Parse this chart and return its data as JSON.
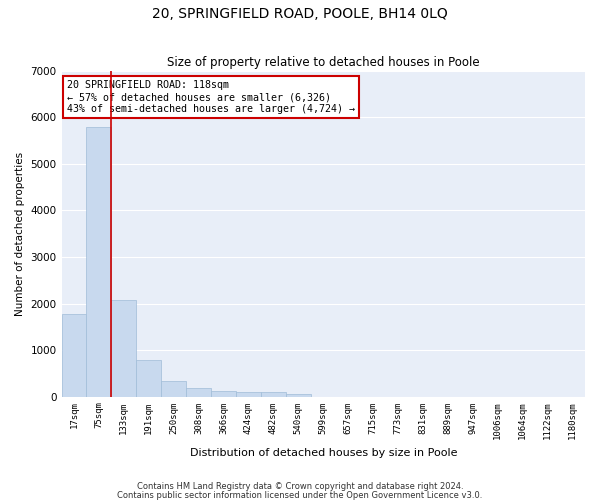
{
  "title": "20, SPRINGFIELD ROAD, POOLE, BH14 0LQ",
  "subtitle": "Size of property relative to detached houses in Poole",
  "xlabel": "Distribution of detached houses by size in Poole",
  "ylabel": "Number of detached properties",
  "bar_color": "#c8d9ee",
  "bar_edge_color": "#a0bcd8",
  "highlight_color": "#cc0000",
  "background_color": "#e8eef8",
  "grid_color": "#ffffff",
  "categories": [
    "17sqm",
    "75sqm",
    "133sqm",
    "191sqm",
    "250sqm",
    "308sqm",
    "366sqm",
    "424sqm",
    "482sqm",
    "540sqm",
    "599sqm",
    "657sqm",
    "715sqm",
    "773sqm",
    "831sqm",
    "889sqm",
    "947sqm",
    "1006sqm",
    "1064sqm",
    "1122sqm",
    "1180sqm"
  ],
  "values": [
    1780,
    5780,
    2080,
    790,
    340,
    190,
    115,
    100,
    90,
    65,
    0,
    0,
    0,
    0,
    0,
    0,
    0,
    0,
    0,
    0,
    0
  ],
  "ylim": [
    0,
    7000
  ],
  "yticks": [
    0,
    1000,
    2000,
    3000,
    4000,
    5000,
    6000,
    7000
  ],
  "property_label": "20 SPRINGFIELD ROAD: 118sqm",
  "annotation_line1": "← 57% of detached houses are smaller (6,326)",
  "annotation_line2": "43% of semi-detached houses are larger (4,724) →",
  "vline_x": 1.5,
  "footnote1": "Contains HM Land Registry data © Crown copyright and database right 2024.",
  "footnote2": "Contains public sector information licensed under the Open Government Licence v3.0."
}
